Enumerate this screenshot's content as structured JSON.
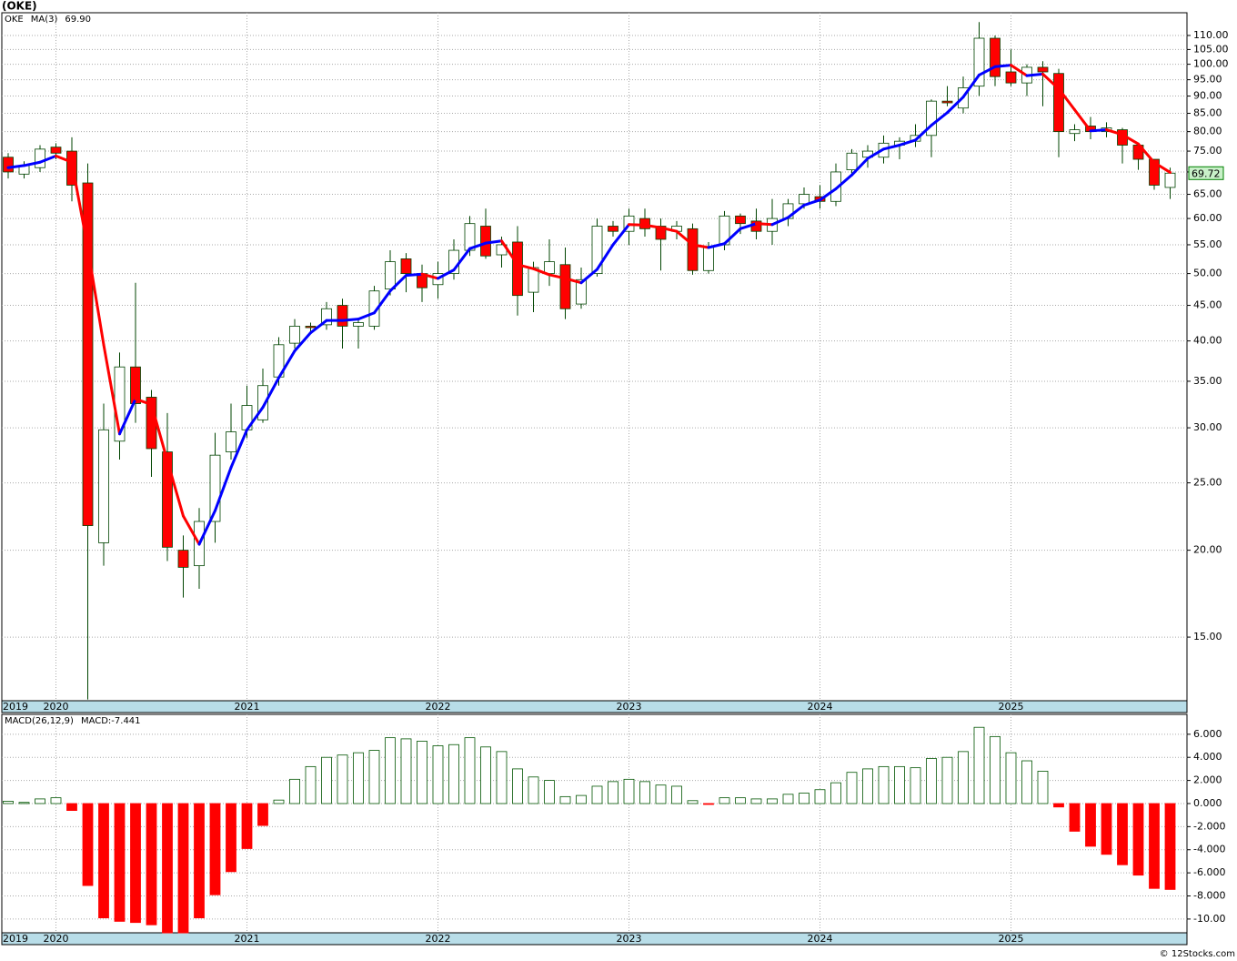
{
  "chart_data": {
    "type": "candlestick",
    "title": "(OKE)",
    "legend": [
      "OKE",
      "MA(3)",
      "69.90"
    ],
    "footer": "© 12Stocks.com",
    "categories": [
      "2019",
      null,
      null,
      "2020",
      null,
      null,
      null,
      null,
      null,
      null,
      null,
      null,
      null,
      null,
      null,
      "2021",
      null,
      null,
      null,
      null,
      null,
      null,
      null,
      null,
      null,
      null,
      null,
      "2022",
      null,
      null,
      null,
      null,
      null,
      null,
      null,
      null,
      null,
      null,
      null,
      "2023",
      null,
      null,
      null,
      null,
      null,
      null,
      null,
      null,
      null,
      null,
      null,
      "2024",
      null,
      null,
      null,
      null,
      null,
      null,
      null,
      null,
      null,
      null,
      null,
      "2025",
      null,
      null,
      null,
      null,
      null,
      null,
      null,
      null,
      null,
      null
    ],
    "open": [
      73.5,
      69.5,
      71,
      76,
      75,
      67.5,
      20.5,
      28.7,
      36.7,
      33.2,
      27.7,
      20,
      19,
      22,
      27.7,
      29.8,
      30.8,
      35.5,
      39.7,
      42,
      42.2,
      45,
      42,
      42,
      47.5,
      52.5,
      50,
      48.2,
      50,
      54,
      58.5,
      53.2,
      55.5,
      47,
      50,
      51.5,
      45.2,
      50,
      58.5,
      57.5,
      60,
      58.5,
      57.5,
      58,
      50.5,
      55,
      60.5,
      59.5,
      57.5,
      60,
      63,
      64.5,
      63.5,
      70.5,
      73.5,
      73.5,
      76.5,
      77.5,
      79,
      88.5,
      86.5,
      93,
      109,
      97.5,
      94,
      99,
      97,
      79.5,
      81.5,
      80,
      80.5,
      76.5,
      73,
      66.5
    ],
    "high": [
      74.5,
      72.5,
      76.5,
      77,
      78.5,
      72,
      32.5,
      38.5,
      48.5,
      34,
      31.5,
      21,
      23,
      29.5,
      32.5,
      34.5,
      36.5,
      40.5,
      43,
      42.5,
      45.5,
      46,
      43,
      48,
      54,
      53.5,
      51.5,
      52,
      56,
      60.5,
      62,
      56.5,
      58.5,
      52,
      56,
      54.5,
      51,
      60,
      59.5,
      62,
      62,
      60,
      59.5,
      59,
      55.5,
      61.5,
      61,
      62,
      64,
      64,
      66.5,
      67,
      72,
      75.5,
      76.5,
      79,
      78.5,
      82,
      89,
      93,
      96,
      115,
      110,
      105,
      100,
      101,
      98.5,
      82,
      84,
      82.5,
      81,
      77,
      73,
      71
    ],
    "low": [
      68.5,
      68.5,
      70,
      73,
      63.5,
      12.2,
      19,
      27,
      30.5,
      25.5,
      19.3,
      17.1,
      17.6,
      20.5,
      27,
      29,
      30.5,
      34.5,
      39,
      41,
      41.5,
      39,
      39,
      41.5,
      46.5,
      47,
      45.5,
      46,
      49,
      53,
      52.5,
      51,
      43.5,
      44,
      48,
      43,
      44.5,
      49.5,
      56.5,
      55,
      56.5,
      50.5,
      56,
      49.8,
      50,
      54,
      57,
      56,
      55,
      58.5,
      62,
      62,
      62.5,
      69,
      71,
      72,
      73,
      76,
      73.5,
      87,
      85,
      90,
      93,
      93,
      90,
      87,
      73.5,
      77.5,
      78,
      78.5,
      72,
      70.5,
      66,
      64
    ],
    "close": [
      70,
      71.5,
      75.5,
      74.5,
      67,
      21.7,
      29.8,
      36.7,
      32.5,
      28,
      20.2,
      18.9,
      22,
      27.4,
      29.6,
      32.3,
      34.5,
      39.5,
      42,
      41.8,
      44.5,
      42,
      42.5,
      47.2,
      52,
      50,
      47.7,
      50,
      54,
      59,
      53,
      55,
      46.5,
      51,
      52,
      44.5,
      49,
      58.5,
      57.5,
      60.5,
      58,
      56,
      58.5,
      50.5,
      54.5,
      60.5,
      59,
      57.5,
      60,
      63,
      65,
      63.5,
      70,
      74.5,
      75,
      77,
      77.5,
      79,
      88.5,
      88,
      92.5,
      109,
      96,
      94,
      99,
      97.5,
      80,
      80.5,
      80,
      81,
      76.5,
      73,
      67,
      69.72
    ],
    "up_color": "#ffffff",
    "down_color": "#ff0000",
    "outline_color": "#004400",
    "ma": {
      "values": [
        71,
        71.5,
        72.3,
        73.8,
        72.3,
        54.4,
        39.5,
        29.4,
        33,
        32.4,
        26.9,
        22.4,
        20.4,
        22.8,
        26.3,
        29.8,
        32.1,
        35.4,
        38.7,
        41.1,
        42.8,
        42.8,
        43,
        43.9,
        47.2,
        49.7,
        49.9,
        49.2,
        50.6,
        54.3,
        55.3,
        55.7,
        51.5,
        50.8,
        49.8,
        49.2,
        48.5,
        50.7,
        55,
        58.8,
        58.7,
        58.2,
        57.5,
        55,
        54.5,
        55.2,
        58,
        59,
        58.8,
        60.2,
        62.7,
        63.8,
        66.2,
        69.3,
        73.2,
        75.5,
        76.5,
        77.8,
        81.7,
        85.2,
        89.7,
        96.5,
        99.2,
        99.7,
        96.3,
        96.8,
        92.2,
        86,
        80.2,
        80.5,
        79.2,
        76.8,
        72.2,
        69.9
      ],
      "up_color": "#0000ff",
      "down_color": "#ff0000"
    },
    "ylim": [
      12.15,
      118.6
    ],
    "log_scale": true,
    "grid": true,
    "yticks": [
      {
        "value": 15,
        "label": "15.00"
      },
      {
        "value": 20,
        "label": "20.00"
      },
      {
        "value": 25,
        "label": "25.00"
      },
      {
        "value": 30,
        "label": "30.00"
      },
      {
        "value": 35,
        "label": "35.00"
      },
      {
        "value": 40,
        "label": "40.00"
      },
      {
        "value": 45,
        "label": "45.00"
      },
      {
        "value": 50,
        "label": "50.00"
      },
      {
        "value": 55,
        "label": "55.00"
      },
      {
        "value": 60,
        "label": "60.00"
      },
      {
        "value": 65,
        "label": "65.00"
      },
      {
        "value": 70,
        "label": "70.00"
      },
      {
        "value": 75,
        "label": "75.00"
      },
      {
        "value": 80,
        "label": "80.00"
      },
      {
        "value": 85,
        "label": "85.00"
      },
      {
        "value": 90,
        "label": "90.00"
      },
      {
        "value": 95,
        "label": "95.00"
      },
      {
        "value": 100,
        "label": "100.00"
      },
      {
        "value": 105,
        "label": "105.00"
      },
      {
        "value": 110,
        "label": "110.00"
      }
    ],
    "macd": {
      "type": "bar",
      "legend": [
        "MACD(26,12,9)",
        "MACD:-7.441"
      ],
      "values": [
        0.2,
        0.1,
        0.4,
        0.5,
        -0.6,
        -7.1,
        -9.9,
        -10.2,
        -10.3,
        -10.5,
        -11.2,
        -11.2,
        -9.9,
        -7.9,
        -5.9,
        -3.9,
        -1.9,
        0.3,
        2.1,
        3.2,
        4.0,
        4.2,
        4.4,
        4.6,
        5.7,
        5.6,
        5.4,
        5.0,
        5.1,
        5.7,
        4.9,
        4.5,
        3.0,
        2.3,
        2.0,
        0.6,
        0.7,
        1.5,
        1.9,
        2.1,
        1.9,
        1.6,
        1.5,
        0.25,
        -0.05,
        0.5,
        0.5,
        0.4,
        0.4,
        0.8,
        0.9,
        1.2,
        1.8,
        2.7,
        3.0,
        3.2,
        3.2,
        3.1,
        3.9,
        4.0,
        4.5,
        6.6,
        5.8,
        4.4,
        3.7,
        2.8,
        -0.3,
        -2.4,
        -3.7,
        -4.4,
        -5.3,
        -6.2,
        -7.35,
        -7.441
      ],
      "up_color": "#ffffff",
      "down_color": "#ff0000",
      "outline_color": "#005500",
      "ylim": [
        -11.19,
        7.72
      ],
      "yticks": [
        {
          "value": -10,
          "label": "-10.00"
        },
        {
          "value": -8,
          "label": "-8.000"
        },
        {
          "value": -6,
          "label": "-6.000"
        },
        {
          "value": -4,
          "label": "-4.000"
        },
        {
          "value": -2,
          "label": "-2.000"
        },
        {
          "value": 0,
          "label": "0.000"
        },
        {
          "value": 2,
          "label": "2.000"
        },
        {
          "value": 4,
          "label": "4.000"
        },
        {
          "value": 6,
          "label": "6.000"
        }
      ]
    }
  }
}
